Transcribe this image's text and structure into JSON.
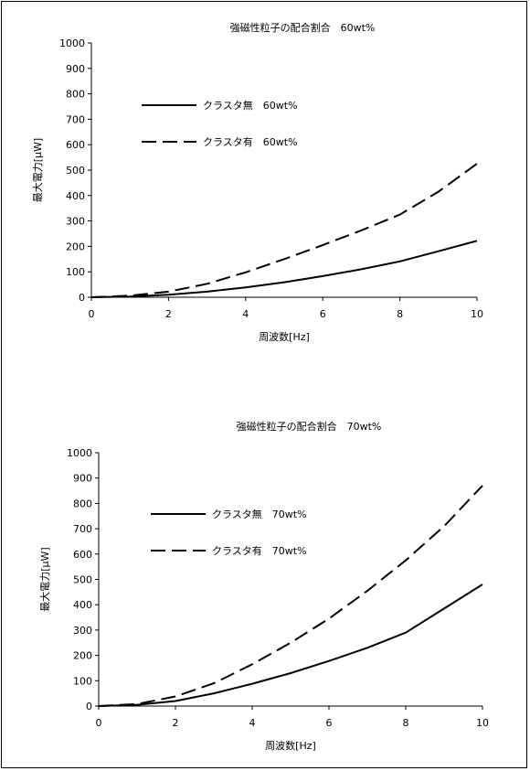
{
  "chart_data": [
    {
      "type": "line",
      "title": "強磁性粒子の配合割合　60wt%",
      "xlabel": "周波数[Hz]",
      "ylabel": "最大電力[μW]",
      "xlim": [
        0,
        10
      ],
      "ylim": [
        0,
        1000
      ],
      "xticks": [
        "0",
        "2",
        "4",
        "6",
        "8",
        "10"
      ],
      "yticks": [
        "0",
        "100",
        "200",
        "300",
        "400",
        "500",
        "600",
        "700",
        "800",
        "900",
        "1000"
      ],
      "grid": false,
      "legend_position": "top-left",
      "x": [
        0,
        1,
        2,
        3,
        4,
        5,
        6,
        7,
        8,
        9,
        10
      ],
      "series": [
        {
          "name": "クラスタ無　60wt%",
          "style": "solid",
          "values": [
            0,
            3,
            10,
            22,
            39,
            59,
            83,
            110,
            141,
            181,
            222
          ]
        },
        {
          "name": "クラスタ有　60wt%",
          "style": "dashed",
          "values": [
            0,
            6,
            22,
            53,
            98,
            150,
            205,
            263,
            325,
            415,
            525
          ]
        }
      ]
    },
    {
      "type": "line",
      "title": "強磁性粒子の配合割合　70wt%",
      "xlabel": "周波数[Hz]",
      "ylabel": "最大電力[μW]",
      "xlim": [
        0,
        10
      ],
      "ylim": [
        0,
        1000
      ],
      "xticks": [
        "0",
        "2",
        "4",
        "6",
        "8",
        "10"
      ],
      "yticks": [
        "0",
        "100",
        "200",
        "300",
        "400",
        "500",
        "600",
        "700",
        "800",
        "900",
        "1000"
      ],
      "grid": false,
      "legend_position": "top-left",
      "x": [
        0,
        1,
        2,
        3,
        4,
        5,
        6,
        7,
        8,
        9,
        10
      ],
      "series": [
        {
          "name": "クラスタ無　70wt%",
          "style": "solid",
          "values": [
            0,
            5,
            20,
            50,
            88,
            130,
            178,
            230,
            290,
            385,
            480
          ]
        },
        {
          "name": "クラスタ有　70wt%",
          "style": "dashed",
          "values": [
            0,
            8,
            38,
            90,
            165,
            250,
            345,
            455,
            575,
            710,
            870
          ]
        }
      ]
    }
  ]
}
